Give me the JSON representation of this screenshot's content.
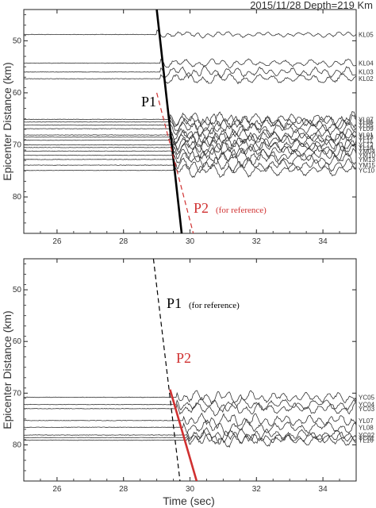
{
  "header": "2015/11/28 Depth=219 Km",
  "xlabel": "Time (sec)",
  "chart_data": [
    {
      "type": "line",
      "panel": "top",
      "ylabel": "Epicenter Distance (km)",
      "xlim": [
        25,
        35
      ],
      "ylim": [
        44,
        87
      ],
      "x_ticks": [
        26,
        28,
        30,
        32,
        34
      ],
      "y_ticks": [
        50,
        60,
        70,
        80
      ],
      "grid": false,
      "traces": [
        {
          "label": "KL05",
          "dist": 48.8,
          "onset": 29.0,
          "amp": 0.55
        },
        {
          "label": "KL04",
          "dist": 54.3,
          "onset": 29.1,
          "amp": 0.8
        },
        {
          "label": "KL03",
          "dist": 56.0,
          "onset": 29.1,
          "amp": 1.0
        },
        {
          "label": "KL02",
          "dist": 57.3,
          "onset": 29.1,
          "amp": 1.0
        },
        {
          "label": "YL07",
          "dist": 65.1,
          "onset": 29.4,
          "amp": 1.3
        },
        {
          "label": "YL06",
          "dist": 65.6,
          "onset": 29.4,
          "amp": 1.3
        },
        {
          "label": "YL05",
          "dist": 66.2,
          "onset": 29.4,
          "amp": 1.3
        },
        {
          "label": "YL09",
          "dist": 66.9,
          "onset": 29.4,
          "amp": 1.3
        },
        {
          "label": "YL01",
          "dist": 68.1,
          "onset": 29.4,
          "amp": 1.3
        },
        {
          "label": "YL13",
          "dist": 68.5,
          "onset": 29.4,
          "amp": 1.3
        },
        {
          "label": "YL11",
          "dist": 69.1,
          "onset": 29.4,
          "amp": 1.3
        },
        {
          "label": "YL12",
          "dist": 70.0,
          "onset": 29.5,
          "amp": 1.3
        },
        {
          "label": "YL14",
          "dist": 70.5,
          "onset": 29.5,
          "amp": 1.3
        },
        {
          "label": "YM04",
          "dist": 71.2,
          "onset": 29.5,
          "amp": 1.3
        },
        {
          "label": "YM10",
          "dist": 72.0,
          "onset": 29.5,
          "amp": 1.3
        },
        {
          "label": "YM13",
          "dist": 72.8,
          "onset": 29.5,
          "amp": 1.3
        },
        {
          "label": "YM15",
          "dist": 73.9,
          "onset": 29.5,
          "amp": 1.3
        },
        {
          "label": "YC10",
          "dist": 74.9,
          "onset": 29.5,
          "amp": 1.2
        }
      ],
      "picks": [
        {
          "label": "P1",
          "x1": 29.0,
          "y1": 44,
          "x2": 29.75,
          "y2": 87,
          "color": "#000000",
          "style": "solid"
        },
        {
          "label": "P2",
          "sublabel": "(for reference)",
          "x1": 29.0,
          "y1": 60,
          "x2": 30.1,
          "y2": 87,
          "color": "#d03030",
          "style": "dashed"
        }
      ]
    },
    {
      "type": "line",
      "panel": "bottom",
      "ylabel": "Epicenter Distance (km)",
      "xlim": [
        25,
        35
      ],
      "ylim": [
        44,
        87
      ],
      "x_ticks": [
        26,
        28,
        30,
        32,
        34
      ],
      "y_ticks": [
        50,
        60,
        70,
        80
      ],
      "grid": false,
      "traces": [
        {
          "label": "YC05",
          "dist": 70.8,
          "onset": 29.6,
          "amp": 1.2
        },
        {
          "label": "YC04",
          "dist": 72.2,
          "onset": 29.6,
          "amp": 1.2
        },
        {
          "label": "YC03",
          "dist": 73.0,
          "onset": 29.6,
          "amp": 1.2
        },
        {
          "label": "YL07",
          "dist": 75.3,
          "onset": 29.8,
          "amp": 1.3
        },
        {
          "label": "YL08",
          "dist": 76.6,
          "onset": 29.8,
          "amp": 1.3
        },
        {
          "label": "YC02",
          "dist": 78.1,
          "onset": 29.9,
          "amp": 1.2
        },
        {
          "label": "YC01",
          "dist": 78.6,
          "onset": 29.9,
          "amp": 1.2
        },
        {
          "label": "YL16",
          "dist": 79.1,
          "onset": 29.9,
          "amp": 1.2
        }
      ],
      "picks": [
        {
          "label": "P1",
          "sublabel": "(for reference)",
          "x1": 28.9,
          "y1": 44,
          "x2": 29.7,
          "y2": 87,
          "color": "#000000",
          "style": "dashed"
        },
        {
          "label": "P2",
          "x1": 29.4,
          "y1": 69.3,
          "x2": 30.2,
          "y2": 87,
          "color": "#d03030",
          "style": "solid"
        }
      ]
    }
  ]
}
